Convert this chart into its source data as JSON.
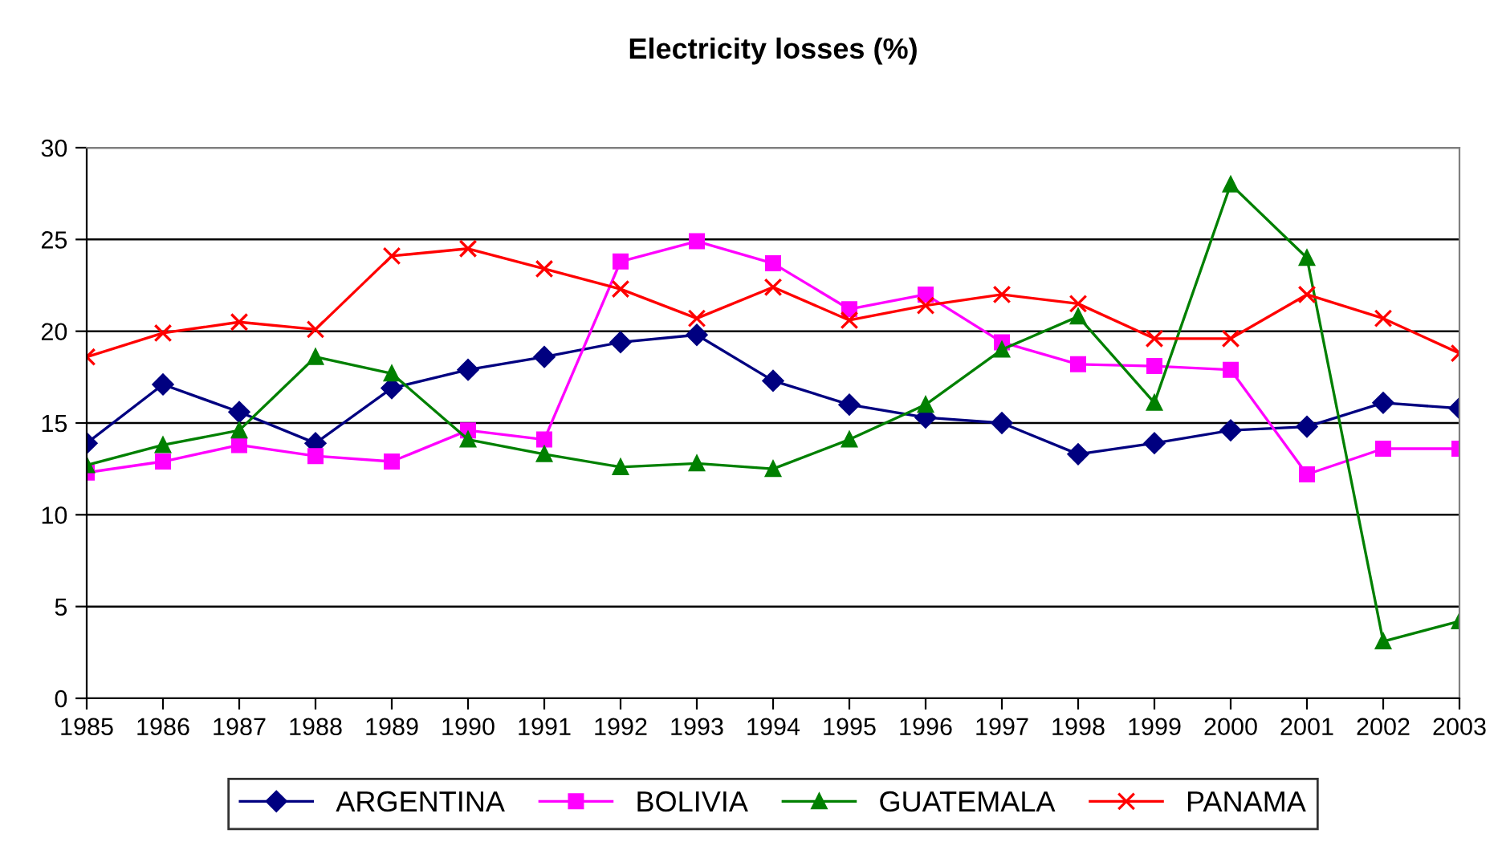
{
  "chart_data": {
    "type": "line",
    "title": "Electricity losses (%)",
    "categories": [
      "1985",
      "1986",
      "1987",
      "1988",
      "1989",
      "1990",
      "1991",
      "1992",
      "1993",
      "1994",
      "1995",
      "1996",
      "1997",
      "1998",
      "1999",
      "2000",
      "2001",
      "2002",
      "2003"
    ],
    "series": [
      {
        "name": "ARGENTINA",
        "color": "#000080",
        "marker": "diamond",
        "values": [
          13.9,
          17.1,
          15.6,
          13.9,
          16.9,
          17.9,
          18.6,
          19.4,
          19.8,
          17.3,
          16.0,
          15.3,
          15.0,
          13.3,
          13.9,
          14.6,
          14.8,
          16.1,
          15.8
        ]
      },
      {
        "name": "BOLIVIA",
        "color": "#ff00ff",
        "marker": "square",
        "values": [
          12.3,
          12.9,
          13.8,
          13.2,
          12.9,
          14.6,
          14.1,
          23.8,
          24.9,
          23.7,
          21.2,
          22.0,
          19.4,
          18.2,
          18.1,
          17.9,
          12.2,
          13.6,
          13.6
        ]
      },
      {
        "name": "GUATEMALA",
        "color": "#008000",
        "marker": "triangle",
        "values": [
          12.7,
          13.8,
          14.6,
          18.6,
          17.7,
          14.1,
          13.3,
          12.6,
          12.8,
          12.5,
          14.1,
          16.0,
          19.0,
          20.8,
          16.1,
          28.0,
          24.0,
          3.1,
          4.2
        ]
      },
      {
        "name": "PANAMA",
        "color": "#ff0000",
        "marker": "cross",
        "values": [
          18.6,
          19.9,
          20.5,
          20.1,
          24.1,
          24.5,
          23.4,
          22.3,
          20.7,
          22.4,
          20.6,
          21.4,
          22.0,
          21.5,
          19.6,
          19.6,
          22.0,
          20.7,
          18.8
        ]
      }
    ],
    "ylim": [
      0,
      30
    ],
    "yticks": [
      0,
      5,
      10,
      15,
      20,
      25,
      30
    ],
    "grid": "y",
    "legend": "bottom",
    "line_style": "solid"
  }
}
